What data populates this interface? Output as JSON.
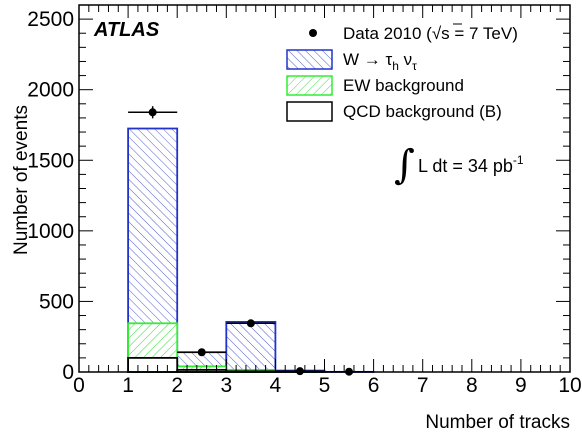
{
  "chart_data": {
    "type": "bar",
    "experiment_label": "ATLAS",
    "xlabel": "Number of tracks",
    "ylabel": "Number of events",
    "xlim": [
      0,
      10
    ],
    "ylim": [
      0,
      2600
    ],
    "x_ticks": [
      "0",
      "1",
      "2",
      "3",
      "4",
      "5",
      "6",
      "7",
      "8",
      "9",
      "10"
    ],
    "y_ticks": [
      "0",
      "500",
      "1000",
      "1500",
      "2000",
      "2500"
    ],
    "bins": [
      [
        1,
        2
      ],
      [
        2,
        3
      ],
      [
        3,
        4
      ],
      [
        4,
        5
      ],
      [
        5,
        6
      ]
    ],
    "series": [
      {
        "name": "QCD background (B)",
        "values": [
          100,
          15,
          5,
          2,
          0
        ],
        "color": "#000000"
      },
      {
        "name": "EW background",
        "values": [
          245,
          25,
          10,
          2,
          0
        ],
        "color": "#33ee33"
      },
      {
        "name": "W → τh ντ",
        "values": [
          1380,
          100,
          340,
          6,
          1
        ],
        "color": "#2233cc"
      }
    ],
    "data": {
      "name": "Data 2010 (√s = 7 TeV)",
      "x": [
        1.5,
        2.5,
        3.5,
        4.5,
        5.5
      ],
      "y": [
        1840,
        140,
        345,
        6,
        2
      ],
      "x_err": [
        0.5,
        0.5,
        0.5,
        0.5,
        0.5
      ],
      "y_err": [
        43,
        12,
        19,
        2,
        1
      ]
    },
    "legend": [
      {
        "label": "Data 2010 (",
        "sqrt": "√s",
        "label_end": " = 7 TeV)",
        "style": "marker"
      },
      {
        "label": "W → τ",
        "sub1": "h",
        "mid": " ν",
        "sub2": "τ",
        "style": "hatch-blue"
      },
      {
        "label": "EW background",
        "style": "hatch-green"
      },
      {
        "label": "QCD background (B)",
        "style": "box-black"
      }
    ],
    "annotation": {
      "integral": "∫",
      "text": "L dt = 34 pb",
      "sup": "-1"
    },
    "legend_position": "top-right",
    "grid": false
  }
}
